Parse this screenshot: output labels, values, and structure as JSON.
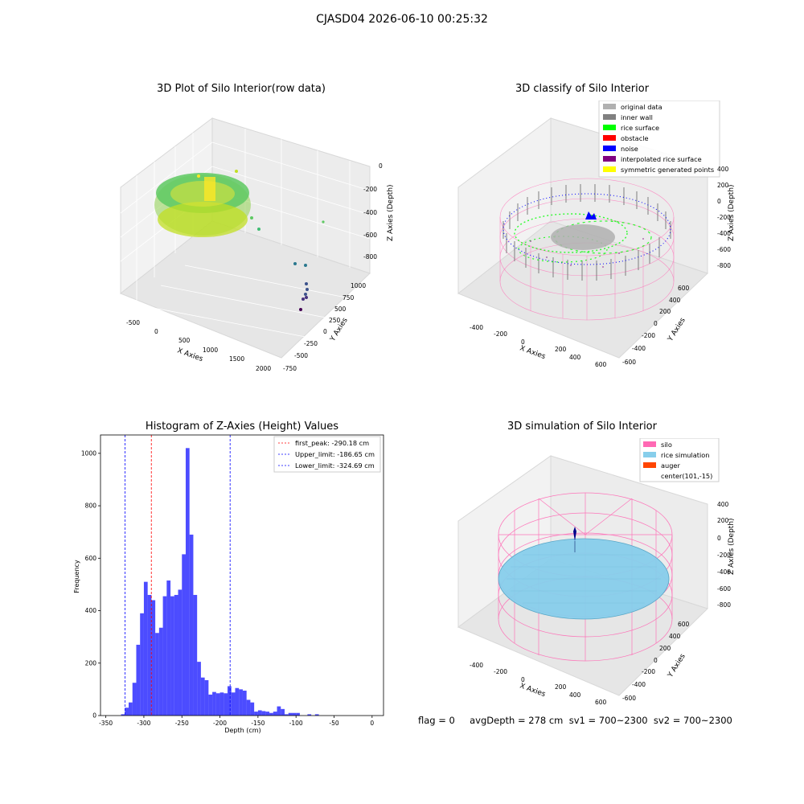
{
  "suptitle": "CJASD04 2026-06-10 00:25:32",
  "panels": {
    "raw": {
      "title": "3D Plot of Silo Interior(row data)",
      "xlabel": "X Axies",
      "ylabel": "Y Axies",
      "zlabel": "Z Axies (Depth)",
      "xticks": [
        "-500",
        "0",
        "500",
        "1000",
        "1500",
        "2000"
      ],
      "yticks": [
        "1000",
        "750",
        "500",
        "250",
        "0",
        "-250",
        "-500",
        "-750"
      ],
      "zticks": [
        "0",
        "-200",
        "-400",
        "-600",
        "-800"
      ]
    },
    "classify": {
      "title": "3D classify of Silo Interior",
      "xlabel": "X Axies",
      "ylabel": "Y Axies",
      "zlabel": "Z Axies (Depth)",
      "xticks": [
        "-400",
        "-200",
        "0",
        "200",
        "400",
        "600"
      ],
      "yticks": [
        "600",
        "400",
        "200",
        "0",
        "-200",
        "-400",
        "-600"
      ],
      "zticks": [
        "400",
        "200",
        "0",
        "-200",
        "-400",
        "-600",
        "-800"
      ],
      "legend": [
        {
          "label": "original data",
          "color": "#b0b0b0"
        },
        {
          "label": "inner wall",
          "color": "#808080"
        },
        {
          "label": "rice surface",
          "color": "#00ff00"
        },
        {
          "label": "obstacle",
          "color": "#ff0000"
        },
        {
          "label": "noise",
          "color": "#0000ff"
        },
        {
          "label": "interpolated rice surface",
          "color": "#800080"
        },
        {
          "label": "symmetric generated points",
          "color": "#ffff00"
        }
      ]
    },
    "simulation": {
      "title": "3D simulation of Silo Interior",
      "xlabel": "X Axies",
      "ylabel": "Y Axies",
      "zlabel": "Z Axies (Depth)",
      "xticks": [
        "-400",
        "-200",
        "0",
        "200",
        "400",
        "600"
      ],
      "yticks": [
        "600",
        "400",
        "200",
        "0",
        "-200",
        "-400",
        "-600"
      ],
      "zticks": [
        "400",
        "200",
        "0",
        "-200",
        "-400",
        "-600",
        "-800"
      ],
      "legend": [
        {
          "label": "silo",
          "color": "#ff69b4"
        },
        {
          "label": "rice simulation",
          "color": "#87ceeb"
        },
        {
          "label": "auger",
          "color": "#ff4500"
        },
        {
          "label": "center(101,-15)",
          "color": ""
        }
      ]
    }
  },
  "status_text": "flag = 0     avgDepth = 278 cm  sv1 = 700~2300  sv2 = 700~2300",
  "chart_data": [
    {
      "type": "bar",
      "title": "Histogram of Z-Axies (Height) Values",
      "xlabel": "Depth (cm)",
      "ylabel": "Frequency",
      "xlim": [
        -357,
        15
      ],
      "ylim": [
        0,
        1070
      ],
      "xticks": [
        -350,
        -300,
        -250,
        -200,
        -150,
        -100,
        -50,
        0
      ],
      "yticks": [
        0,
        200,
        400,
        600,
        800,
        1000
      ],
      "bin_width": 5,
      "bin_starts": [
        -330,
        -325,
        -320,
        -315,
        -310,
        -305,
        -300,
        -295,
        -290,
        -285,
        -280,
        -275,
        -270,
        -265,
        -260,
        -255,
        -250,
        -245,
        -240,
        -235,
        -230,
        -225,
        -220,
        -215,
        -210,
        -205,
        -200,
        -195,
        -190,
        -185,
        -180,
        -175,
        -170,
        -165,
        -160,
        -155,
        -150,
        -145,
        -140,
        -135,
        -130,
        -125,
        -120,
        -115,
        -110,
        -105,
        -100,
        -95,
        -90,
        -85,
        -80,
        -75,
        -70,
        -65,
        -60,
        -55,
        -50,
        -45,
        -40,
        -35,
        -30,
        -25,
        -20,
        -15,
        -10,
        -5,
        0
      ],
      "values": [
        5,
        30,
        50,
        125,
        270,
        390,
        510,
        460,
        440,
        315,
        335,
        455,
        515,
        455,
        460,
        480,
        615,
        1020,
        690,
        460,
        205,
        145,
        135,
        80,
        90,
        85,
        88,
        85,
        112,
        88,
        105,
        100,
        95,
        60,
        50,
        15,
        20,
        17,
        15,
        10,
        15,
        35,
        25,
        5,
        10,
        10,
        10,
        0,
        0,
        5,
        0,
        5,
        0,
        0,
        0,
        0,
        0,
        0,
        0,
        0,
        0,
        0,
        0,
        0,
        0,
        0,
        0
      ],
      "bar_color": "#0000ff",
      "bar_alpha": 0.7,
      "vlines": [
        {
          "label": "first_peak: -290.18 cm",
          "x": -290.18,
          "color": "#ff0000"
        },
        {
          "label": "Upper_limit: -186.65 cm",
          "x": -186.65,
          "color": "#0000ff"
        },
        {
          "label": "Lower_limit: -324.69 cm",
          "x": -324.69,
          "color": "#0000ff"
        }
      ],
      "legend_position": "top-right"
    }
  ]
}
